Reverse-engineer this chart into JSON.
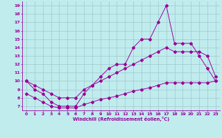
{
  "bg_color": "#c0ecee",
  "line_color": "#990099",
  "grid_color": "#a0c8cc",
  "xlabel": "Windchill (Refroidissement éolien,°C)",
  "xlim": [
    -0.5,
    23.5
  ],
  "ylim": [
    6.5,
    19.5
  ],
  "xticks": [
    0,
    1,
    2,
    3,
    4,
    5,
    6,
    7,
    8,
    9,
    10,
    11,
    12,
    13,
    14,
    15,
    16,
    17,
    18,
    19,
    20,
    21,
    22,
    23
  ],
  "yticks": [
    7,
    8,
    9,
    10,
    11,
    12,
    13,
    14,
    15,
    16,
    17,
    18,
    19
  ],
  "line1_x": [
    0,
    1,
    2,
    3,
    4,
    5,
    6,
    7,
    8,
    9,
    10,
    11,
    12,
    13,
    14,
    15,
    16,
    17,
    18,
    19,
    20,
    21,
    22,
    23
  ],
  "line1_y": [
    10,
    9,
    8.5,
    7.5,
    7.0,
    7.0,
    7.0,
    8.5,
    9.5,
    10.5,
    11.5,
    12,
    12,
    14,
    15,
    15,
    17,
    19,
    14.5,
    14.5,
    14.5,
    13,
    11.5,
    10
  ],
  "line2_x": [
    0,
    1,
    2,
    3,
    4,
    5,
    6,
    7,
    8,
    9,
    10,
    11,
    12,
    13,
    14,
    15,
    16,
    17,
    18,
    19,
    20,
    21,
    22,
    23
  ],
  "line2_y": [
    10.0,
    9.5,
    9.0,
    8.5,
    8.0,
    8.0,
    8.0,
    9.0,
    9.5,
    10.0,
    10.5,
    11.0,
    11.5,
    12.0,
    12.5,
    13.0,
    13.5,
    14.0,
    13.5,
    13.5,
    13.5,
    13.5,
    13.0,
    10.5
  ],
  "line3_x": [
    0,
    1,
    2,
    3,
    4,
    5,
    6,
    7,
    8,
    9,
    10,
    11,
    12,
    13,
    14,
    15,
    16,
    17,
    18,
    19,
    20,
    21,
    22,
    23
  ],
  "line3_y": [
    8.5,
    8.0,
    7.5,
    7.0,
    6.8,
    6.8,
    6.8,
    7.2,
    7.5,
    7.8,
    8.0,
    8.2,
    8.5,
    8.8,
    9.0,
    9.2,
    9.5,
    9.8,
    9.8,
    9.8,
    9.8,
    9.8,
    9.8,
    10.0
  ]
}
